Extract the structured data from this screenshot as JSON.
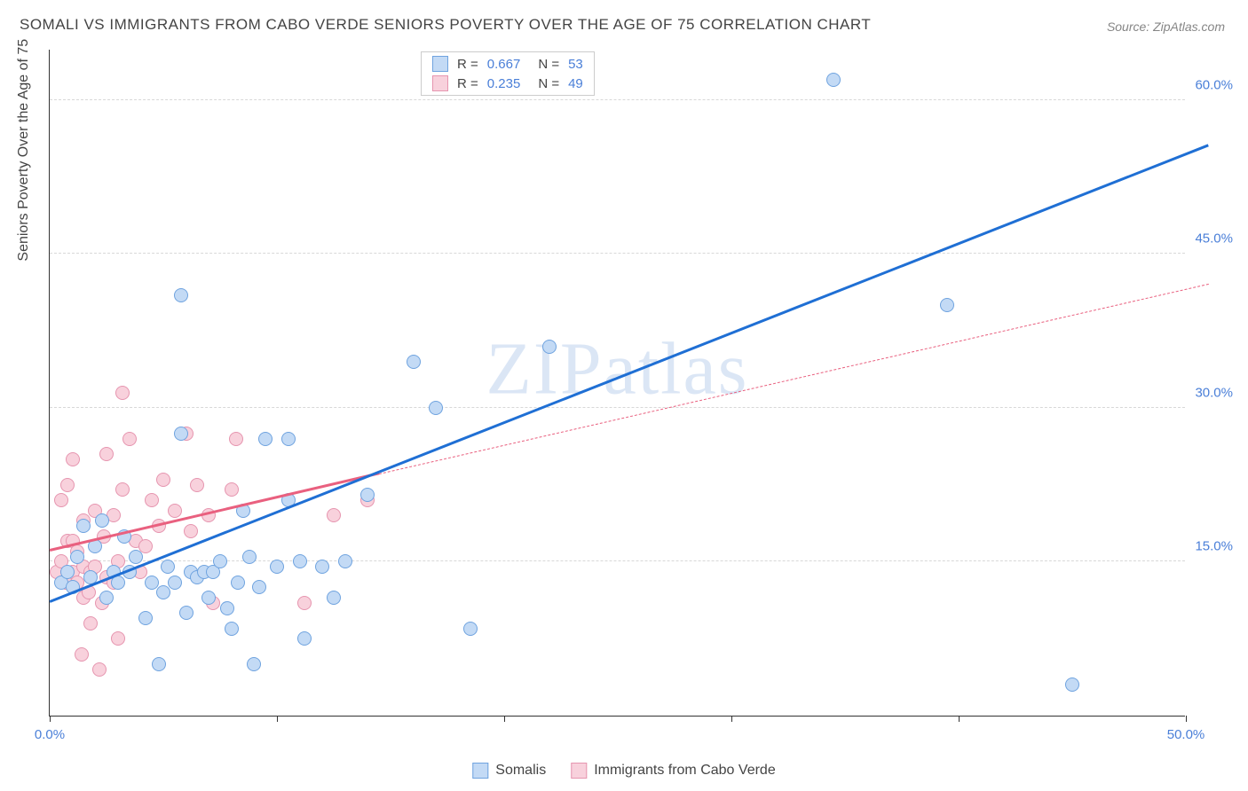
{
  "title": "SOMALI VS IMMIGRANTS FROM CABO VERDE SENIORS POVERTY OVER THE AGE OF 75 CORRELATION CHART",
  "source": "Source: ZipAtlas.com",
  "y_axis_label": "Seniors Poverty Over the Age of 75",
  "watermark": "ZIPatlas",
  "chart": {
    "type": "scatter",
    "xlim": [
      0,
      50
    ],
    "ylim": [
      0,
      65
    ],
    "x_ticks": [
      0,
      10,
      20,
      30,
      40,
      50
    ],
    "x_tick_labels": [
      "0.0%",
      "",
      "",
      "",
      "",
      "50.0%"
    ],
    "y_gridlines": [
      15,
      30,
      45,
      60
    ],
    "y_tick_labels": [
      "15.0%",
      "30.0%",
      "45.0%",
      "60.0%"
    ],
    "background_color": "#ffffff",
    "grid_color": "#d8d8d8",
    "axis_color": "#333333",
    "label_color": "#4a7fd8",
    "title_color": "#444444",
    "title_fontsize": 17,
    "label_fontsize": 15,
    "point_radius": 8
  },
  "series": {
    "somalis": {
      "label": "Somalis",
      "fill": "#c3daf5",
      "stroke": "#6fa3df",
      "trend_color": "#1f6fd4",
      "trend_solid": true,
      "trend_points": [
        [
          0,
          11.0
        ],
        [
          51,
          55.5
        ]
      ],
      "R": "0.667",
      "N": "53",
      "points": [
        [
          0.5,
          13.0
        ],
        [
          0.8,
          14.0
        ],
        [
          1.0,
          12.5
        ],
        [
          1.2,
          15.5
        ],
        [
          1.5,
          18.5
        ],
        [
          1.8,
          13.5
        ],
        [
          2.0,
          16.5
        ],
        [
          2.3,
          19.0
        ],
        [
          2.5,
          11.5
        ],
        [
          2.8,
          14.0
        ],
        [
          3.0,
          13.0
        ],
        [
          3.3,
          17.5
        ],
        [
          3.5,
          14.0
        ],
        [
          3.8,
          15.5
        ],
        [
          4.2,
          9.5
        ],
        [
          4.5,
          13.0
        ],
        [
          4.8,
          5.0
        ],
        [
          5.0,
          12.0
        ],
        [
          5.2,
          14.5
        ],
        [
          5.5,
          13.0
        ],
        [
          5.8,
          27.5
        ],
        [
          5.8,
          41.0
        ],
        [
          6.0,
          10.0
        ],
        [
          6.2,
          14.0
        ],
        [
          6.5,
          13.5
        ],
        [
          6.8,
          14.0
        ],
        [
          7.0,
          11.5
        ],
        [
          7.2,
          14.0
        ],
        [
          7.5,
          15.0
        ],
        [
          7.8,
          10.5
        ],
        [
          8.0,
          8.5
        ],
        [
          8.3,
          13.0
        ],
        [
          8.5,
          20.0
        ],
        [
          8.8,
          15.5
        ],
        [
          9.0,
          5.0
        ],
        [
          9.2,
          12.5
        ],
        [
          9.5,
          27.0
        ],
        [
          10.0,
          14.5
        ],
        [
          10.5,
          21.0
        ],
        [
          10.5,
          27.0
        ],
        [
          11.0,
          15.0
        ],
        [
          11.2,
          7.5
        ],
        [
          12.0,
          14.5
        ],
        [
          12.5,
          11.5
        ],
        [
          13.0,
          15.0
        ],
        [
          14.0,
          21.5
        ],
        [
          16.0,
          34.5
        ],
        [
          17.0,
          30.0
        ],
        [
          18.5,
          8.5
        ],
        [
          22.0,
          36.0
        ],
        [
          34.5,
          62.0
        ],
        [
          39.5,
          40.0
        ],
        [
          45.0,
          3.0
        ]
      ]
    },
    "cabo_verde": {
      "label": "Immigrants from Cabo Verde",
      "fill": "#f8d1dc",
      "stroke": "#e695af",
      "trend_color": "#e9607f",
      "trend_solid_portion": [
        [
          0,
          16.0
        ],
        [
          14.5,
          23.5
        ]
      ],
      "trend_dashed_portion": [
        [
          14.5,
          23.5
        ],
        [
          51,
          42.0
        ]
      ],
      "R": "0.235",
      "N": "49",
      "points": [
        [
          0.3,
          14.0
        ],
        [
          0.5,
          15.0
        ],
        [
          0.5,
          21.0
        ],
        [
          0.7,
          13.0
        ],
        [
          0.8,
          17.0
        ],
        [
          0.8,
          22.5
        ],
        [
          1.0,
          14.0
        ],
        [
          1.0,
          17.0
        ],
        [
          1.0,
          25.0
        ],
        [
          1.2,
          13.0
        ],
        [
          1.2,
          16.0
        ],
        [
          1.4,
          6.0
        ],
        [
          1.5,
          11.5
        ],
        [
          1.5,
          14.5
        ],
        [
          1.5,
          19.0
        ],
        [
          1.7,
          12.0
        ],
        [
          1.8,
          9.0
        ],
        [
          1.8,
          14.0
        ],
        [
          2.0,
          14.5
        ],
        [
          2.0,
          20.0
        ],
        [
          2.2,
          4.5
        ],
        [
          2.3,
          11.0
        ],
        [
          2.4,
          17.5
        ],
        [
          2.5,
          13.5
        ],
        [
          2.5,
          25.5
        ],
        [
          2.8,
          13.0
        ],
        [
          2.8,
          19.5
        ],
        [
          3.0,
          7.5
        ],
        [
          3.0,
          15.0
        ],
        [
          3.2,
          22.0
        ],
        [
          3.2,
          31.5
        ],
        [
          3.5,
          27.0
        ],
        [
          3.8,
          17.0
        ],
        [
          4.0,
          14.0
        ],
        [
          4.2,
          16.5
        ],
        [
          4.5,
          21.0
        ],
        [
          4.8,
          18.5
        ],
        [
          5.0,
          23.0
        ],
        [
          5.5,
          20.0
        ],
        [
          6.0,
          27.5
        ],
        [
          6.2,
          18.0
        ],
        [
          6.5,
          22.5
        ],
        [
          7.0,
          19.5
        ],
        [
          7.2,
          11.0
        ],
        [
          8.0,
          22.0
        ],
        [
          8.2,
          27.0
        ],
        [
          11.2,
          11.0
        ],
        [
          12.5,
          19.5
        ],
        [
          14.0,
          21.0
        ]
      ]
    }
  },
  "legend_order": [
    "somalis",
    "cabo_verde"
  ]
}
